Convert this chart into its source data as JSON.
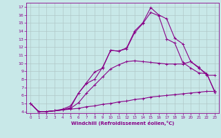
{
  "xlabel": "Windchill (Refroidissement éolien,°C)",
  "xlim": [
    -0.5,
    23.5
  ],
  "ylim": [
    3.8,
    17.5
  ],
  "xticks": [
    0,
    1,
    2,
    3,
    4,
    5,
    6,
    7,
    8,
    9,
    10,
    11,
    12,
    13,
    14,
    15,
    16,
    17,
    18,
    19,
    20,
    21,
    22,
    23
  ],
  "yticks": [
    4,
    5,
    6,
    7,
    8,
    9,
    10,
    11,
    12,
    13,
    14,
    15,
    16,
    17
  ],
  "bg_color": "#c8e8e8",
  "line_color": "#880088",
  "grid_color": "#b0c8c8",
  "curve1": {
    "x": [
      0,
      1,
      2,
      3,
      4,
      5,
      6,
      7,
      8,
      9,
      10,
      11,
      12,
      13,
      14,
      15,
      16,
      17,
      18,
      19,
      20,
      21,
      22,
      23
    ],
    "y": [
      5.0,
      4.0,
      4.0,
      4.1,
      4.2,
      4.3,
      4.4,
      4.6,
      4.7,
      4.9,
      5.0,
      5.2,
      5.3,
      5.5,
      5.6,
      5.8,
      5.9,
      6.0,
      6.1,
      6.2,
      6.3,
      6.4,
      6.5,
      6.5
    ]
  },
  "curve2": {
    "x": [
      0,
      1,
      2,
      3,
      4,
      5,
      6,
      7,
      8,
      9,
      10,
      11,
      12,
      13,
      14,
      15,
      16,
      17,
      18,
      19,
      20,
      21,
      22,
      23
    ],
    "y": [
      5.0,
      4.0,
      4.0,
      4.1,
      4.2,
      4.4,
      5.1,
      6.3,
      7.3,
      8.3,
      9.3,
      9.8,
      10.2,
      10.3,
      10.2,
      10.1,
      10.0,
      9.9,
      9.9,
      9.9,
      10.2,
      9.5,
      8.5,
      8.5
    ]
  },
  "curve3": {
    "x": [
      0,
      1,
      2,
      3,
      4,
      5,
      6,
      7,
      8,
      9,
      10,
      11,
      12,
      13,
      14,
      15,
      16,
      17,
      18,
      19,
      20,
      21,
      22,
      23
    ],
    "y": [
      5.0,
      4.0,
      4.0,
      4.1,
      4.3,
      4.7,
      6.3,
      7.6,
      8.9,
      9.4,
      11.6,
      11.5,
      11.8,
      13.8,
      14.9,
      16.3,
      15.9,
      13.0,
      12.5,
      10.1,
      9.4,
      8.8,
      8.7,
      6.5
    ]
  },
  "curve4": {
    "x": [
      0,
      1,
      2,
      3,
      4,
      5,
      6,
      7,
      8,
      9,
      10,
      11,
      12,
      13,
      14,
      15,
      16,
      17,
      18,
      19,
      20,
      21,
      22,
      23
    ],
    "y": [
      5.0,
      4.0,
      4.0,
      4.1,
      4.2,
      4.5,
      6.3,
      7.5,
      8.0,
      9.5,
      11.6,
      11.5,
      11.9,
      14.0,
      15.0,
      16.9,
      16.0,
      15.5,
      13.1,
      12.4,
      10.2,
      9.4,
      8.7,
      6.4
    ]
  }
}
